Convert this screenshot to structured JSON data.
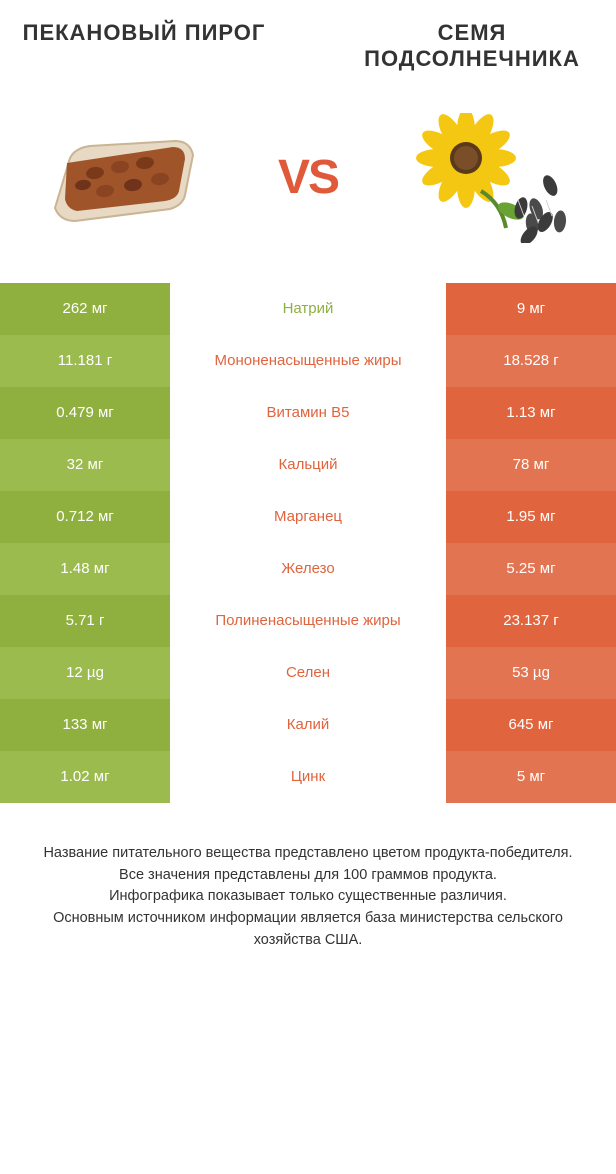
{
  "colors": {
    "left_primary": "#8fb03e",
    "left_alt": "#9bbb4f",
    "right_primary": "#e0643e",
    "right_alt": "#e37452",
    "label_left": "#8fb03e",
    "label_right": "#e0643e",
    "text_white": "#ffffff",
    "background": "#ffffff"
  },
  "header": {
    "left_title": "ПЕКАНОВЫЙ ПИРОГ",
    "right_title": "СЕМЯ ПОДСОЛНЕЧНИКА",
    "vs": "VS"
  },
  "font": {
    "title_size": 22,
    "vs_size": 48,
    "cell_size": 15,
    "footer_size": 14.5
  },
  "rows": [
    {
      "left": "262 мг",
      "label": "Натрий",
      "right": "9 мг",
      "winner": "left"
    },
    {
      "left": "11.181 г",
      "label": "Мононенасыщенные жиры",
      "right": "18.528 г",
      "winner": "right"
    },
    {
      "left": "0.479 мг",
      "label": "Витамин B5",
      "right": "1.13 мг",
      "winner": "right"
    },
    {
      "left": "32 мг",
      "label": "Кальций",
      "right": "78 мг",
      "winner": "right"
    },
    {
      "left": "0.712 мг",
      "label": "Марганец",
      "right": "1.95 мг",
      "winner": "right"
    },
    {
      "left": "1.48 мг",
      "label": "Железо",
      "right": "5.25 мг",
      "winner": "right"
    },
    {
      "left": "5.71 г",
      "label": "Полиненасыщенные жиры",
      "right": "23.137 г",
      "winner": "right"
    },
    {
      "left": "12 µg",
      "label": "Селен",
      "right": "53 µg",
      "winner": "right"
    },
    {
      "left": "133 мг",
      "label": "Калий",
      "right": "645 мг",
      "winner": "right"
    },
    {
      "left": "1.02 мг",
      "label": "Цинк",
      "right": "5 мг",
      "winner": "right"
    }
  ],
  "footer": {
    "line1": "Название питательного вещества представлено цветом продукта-победителя.",
    "line2": "Все значения представлены для 100 граммов продукта.",
    "line3": "Инфографика показывает только существенные различия.",
    "line4": "Основным источником информации является база министерства сельского хозяйства США."
  }
}
